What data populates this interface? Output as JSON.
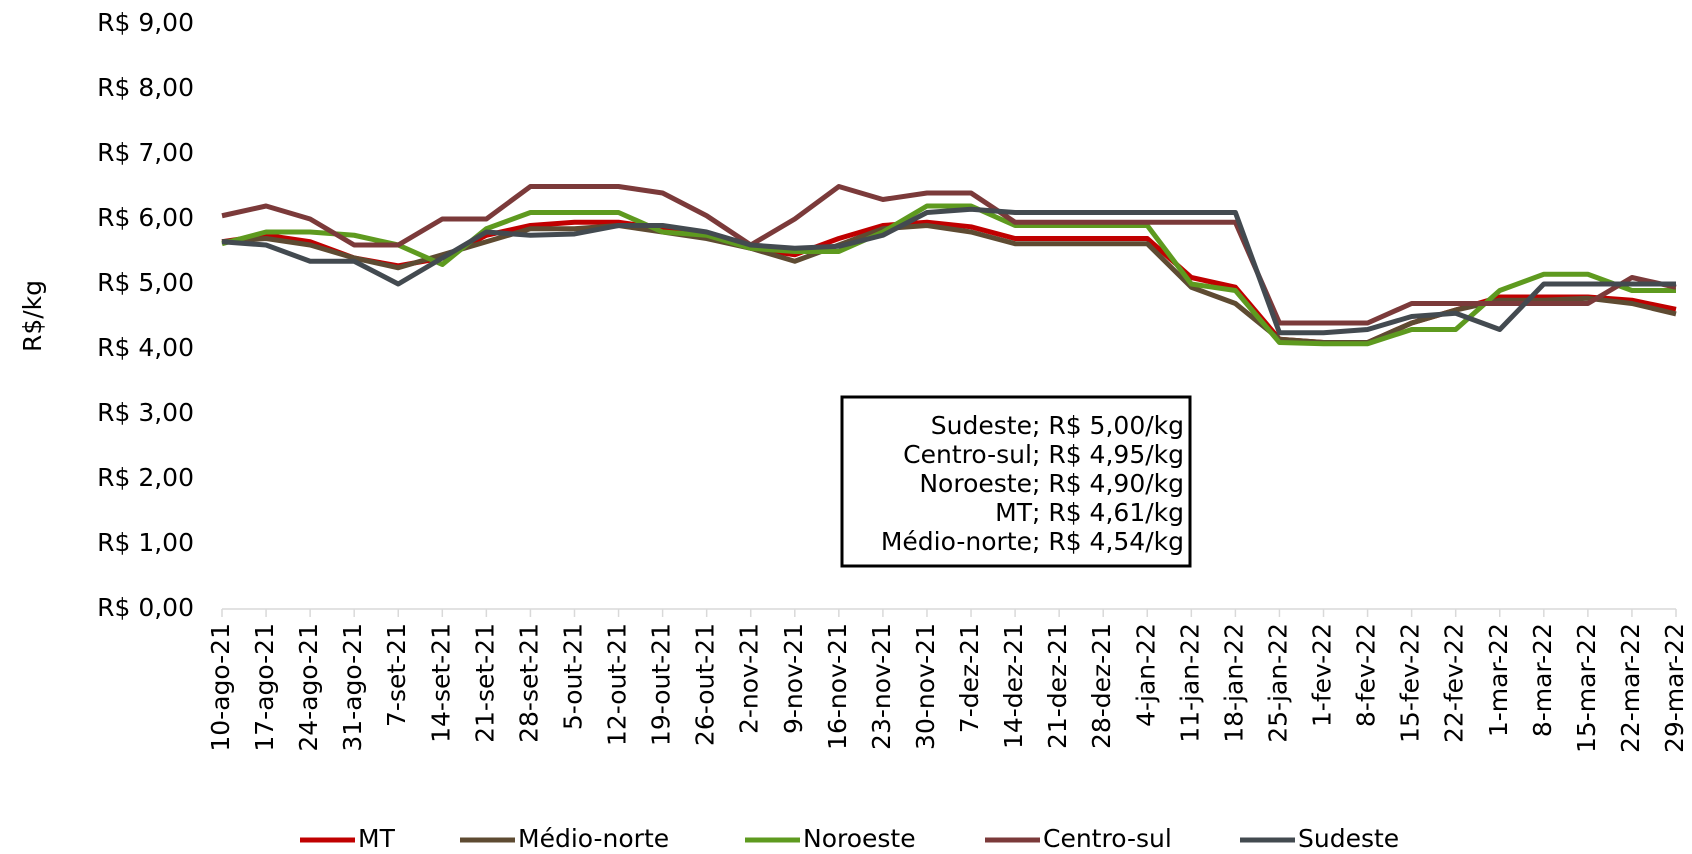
{
  "chart_data": {
    "type": "line",
    "y_label": "R$/kg",
    "categories": [
      "10-ago-21",
      "17-ago-21",
      "24-ago-21",
      "31-ago-21",
      "7-set-21",
      "14-set-21",
      "21-set-21",
      "28-set-21",
      "5-out-21",
      "12-out-21",
      "19-out-21",
      "26-out-21",
      "2-nov-21",
      "9-nov-21",
      "16-nov-21",
      "23-nov-21",
      "30-nov-21",
      "7-dez-21",
      "14-dez-21",
      "21-dez-21",
      "28-dez-21",
      "4-jan-22",
      "11-jan-22",
      "18-jan-22",
      "25-jan-22",
      "1-fev-22",
      "8-fev-22",
      "15-fev-22",
      "22-fev-22",
      "1-mar-22",
      "8-mar-22",
      "15-mar-22",
      "22-mar-22",
      "29-mar-22"
    ],
    "series": [
      {
        "name": "MT",
        "color": "#c00000",
        "values": [
          5.65,
          5.75,
          5.65,
          5.4,
          5.28,
          5.4,
          5.75,
          5.9,
          5.95,
          5.95,
          5.85,
          5.75,
          5.55,
          5.45,
          5.7,
          5.9,
          5.95,
          5.88,
          5.7,
          5.7,
          5.7,
          5.7,
          5.1,
          4.95,
          4.15,
          4.1,
          4.1,
          4.4,
          4.6,
          4.8,
          4.8,
          4.8,
          4.75,
          4.61
        ]
      },
      {
        "name": "Médio-norte",
        "color": "#5e4b32",
        "values": [
          5.65,
          5.7,
          5.6,
          5.4,
          5.25,
          5.45,
          5.65,
          5.85,
          5.85,
          5.9,
          5.8,
          5.7,
          5.55,
          5.35,
          5.6,
          5.85,
          5.9,
          5.8,
          5.62,
          5.62,
          5.62,
          5.62,
          4.95,
          4.7,
          4.15,
          4.1,
          4.1,
          4.4,
          4.6,
          4.75,
          4.75,
          4.78,
          4.7,
          4.54
        ]
      },
      {
        "name": "Noroeste",
        "color": "#5e9a1f",
        "values": [
          5.62,
          5.8,
          5.8,
          5.75,
          5.6,
          5.3,
          5.85,
          6.1,
          6.1,
          6.1,
          5.8,
          5.75,
          5.55,
          5.5,
          5.5,
          5.8,
          6.2,
          6.2,
          5.9,
          5.9,
          5.9,
          5.9,
          5.0,
          4.9,
          4.1,
          4.08,
          4.08,
          4.3,
          4.3,
          4.9,
          5.15,
          5.15,
          4.9,
          4.9
        ]
      },
      {
        "name": "Centro-sul",
        "color": "#7b3a3a",
        "values": [
          6.05,
          6.2,
          6.0,
          5.6,
          5.6,
          6.0,
          6.0,
          6.5,
          6.5,
          6.5,
          6.4,
          6.05,
          5.6,
          6.0,
          6.5,
          6.3,
          6.4,
          6.4,
          5.95,
          5.95,
          5.95,
          5.95,
          5.95,
          5.95,
          4.4,
          4.4,
          4.4,
          4.7,
          4.7,
          4.7,
          4.7,
          4.7,
          5.1,
          4.95
        ]
      },
      {
        "name": "Sudeste",
        "color": "#434a50",
        "values": [
          5.65,
          5.6,
          5.35,
          5.35,
          5.0,
          5.4,
          5.8,
          5.75,
          5.77,
          5.9,
          5.9,
          5.8,
          5.6,
          5.55,
          5.58,
          5.75,
          6.1,
          6.15,
          6.1,
          6.1,
          6.1,
          6.1,
          6.1,
          6.1,
          4.25,
          4.25,
          4.3,
          4.5,
          4.55,
          4.3,
          5.0,
          5.0,
          5.0,
          5.0
        ]
      }
    ],
    "ylim": [
      0,
      9
    ],
    "yticks": [
      {
        "value": 0,
        "label": "R$ 0,00"
      },
      {
        "value": 1,
        "label": "R$ 1,00"
      },
      {
        "value": 2,
        "label": "R$ 2,00"
      },
      {
        "value": 3,
        "label": "R$ 3,00"
      },
      {
        "value": 4,
        "label": "R$ 4,00"
      },
      {
        "value": 5,
        "label": "R$ 5,00"
      },
      {
        "value": 6,
        "label": "R$ 6,00"
      },
      {
        "value": 7,
        "label": "R$ 7,00"
      },
      {
        "value": 8,
        "label": "R$ 8,00"
      },
      {
        "value": 9,
        "label": "R$ 9,00"
      }
    ],
    "annotations": [
      "Sudeste; R$ 5,00/kg",
      "Centro-sul; R$ 4,95/kg",
      "Noroeste; R$ 4,90/kg",
      "MT; R$ 4,61/kg",
      "Médio-norte; R$ 4,54/kg"
    ],
    "legend": "bottom"
  }
}
